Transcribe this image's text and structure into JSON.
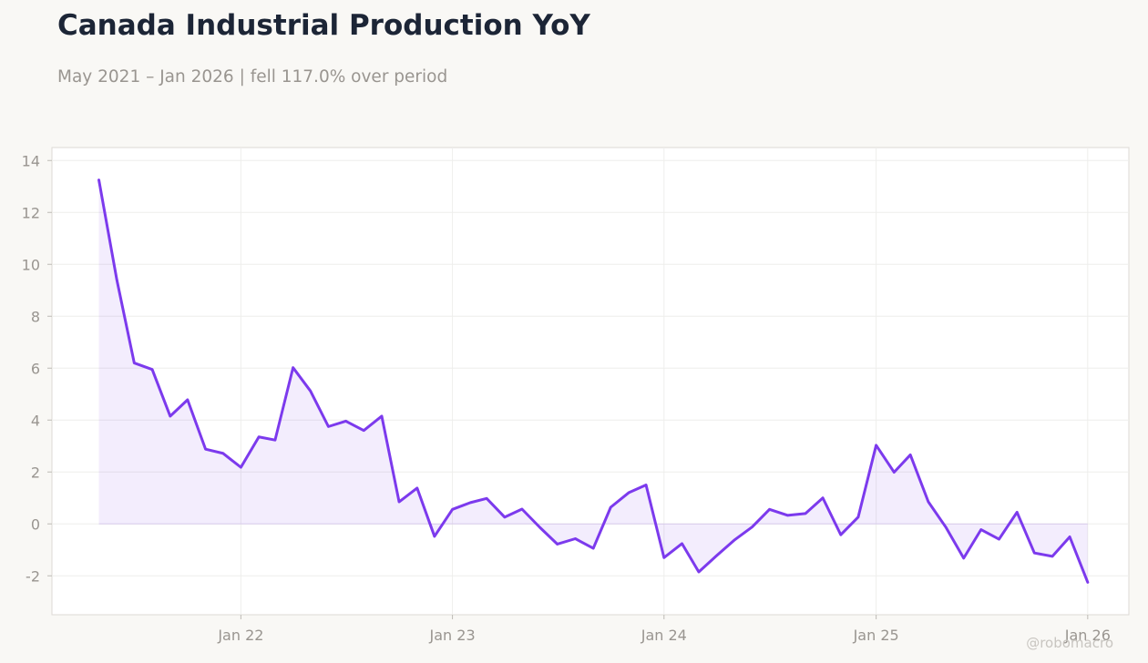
{
  "header": {
    "title": "Canada Industrial Production YoY",
    "subtitle": "May 2021 – Jan 2026 | fell 117.0% over period"
  },
  "watermark": "@robomacro",
  "colors": {
    "background": "#f9f8f5",
    "plot_background": "#ffffff",
    "line": "#7c3aed",
    "fill": "#7c3aed",
    "title": "#1c2536",
    "muted_text": "#999590"
  },
  "chart_data": {
    "type": "area",
    "title": "Canada Industrial Production YoY",
    "subtitle": "May 2021 – Jan 2026 | fell 117.0% over period",
    "xlabel": "",
    "ylabel": "",
    "ylim": [
      -3.5,
      14.5
    ],
    "xlim": [
      "2021-02-09",
      "2026-03-13"
    ],
    "grid": true,
    "x_ticks": [
      {
        "date": "2022-01-01",
        "label": "Jan 22"
      },
      {
        "date": "2023-01-01",
        "label": "Jan 23"
      },
      {
        "date": "2024-01-01",
        "label": "Jan 24"
      },
      {
        "date": "2025-01-01",
        "label": "Jan 25"
      },
      {
        "date": "2026-01-01",
        "label": "Jan 26"
      }
    ],
    "y_ticks": [
      -2,
      0,
      2,
      4,
      6,
      8,
      10,
      12,
      14
    ],
    "y_tick_labels": [
      "-2",
      "0",
      "2",
      "4",
      "6",
      "8",
      "10",
      "12",
      "14"
    ],
    "series": [
      {
        "x": [
          "2021-05-01",
          "2021-06-01",
          "2021-07-01",
          "2021-08-01",
          "2021-09-01",
          "2021-10-01",
          "2021-11-01",
          "2021-12-01",
          "2022-01-01",
          "2022-02-01",
          "2022-03-01",
          "2022-04-01",
          "2022-05-01",
          "2022-06-01",
          "2022-07-01",
          "2022-08-01",
          "2022-09-01",
          "2022-10-01",
          "2022-11-01",
          "2022-12-01",
          "2023-01-01",
          "2023-02-01",
          "2023-03-01",
          "2023-04-01",
          "2023-05-01",
          "2023-06-01",
          "2023-07-01",
          "2023-08-01",
          "2023-09-01",
          "2023-10-01",
          "2023-11-01",
          "2023-12-01",
          "2024-01-01",
          "2024-02-01",
          "2024-03-01",
          "2024-04-01",
          "2024-05-01",
          "2024-06-01",
          "2024-07-01",
          "2024-08-01",
          "2024-09-01",
          "2024-10-01",
          "2024-11-01",
          "2024-12-01",
          "2025-01-01",
          "2025-02-01",
          "2025-03-01",
          "2025-04-01",
          "2025-05-01",
          "2025-06-01",
          "2025-07-01",
          "2025-08-01",
          "2025-09-01",
          "2025-10-01",
          "2025-11-01",
          "2025-12-01",
          "2026-01-01"
        ],
        "values": [
          13.25,
          9.4,
          6.2,
          5.95,
          4.15,
          4.78,
          2.88,
          2.72,
          2.18,
          3.35,
          3.23,
          6.02,
          5.12,
          3.75,
          3.96,
          3.6,
          4.15,
          0.85,
          1.38,
          -0.48,
          0.56,
          0.82,
          0.98,
          0.26,
          0.57,
          -0.14,
          -0.78,
          -0.57,
          -0.94,
          0.64,
          1.2,
          1.5,
          -1.3,
          -0.76,
          -1.85,
          -1.22,
          -0.63,
          -0.12,
          0.56,
          0.33,
          0.4,
          1.0,
          -0.42,
          0.26,
          3.03,
          1.99,
          2.66,
          0.85,
          -0.12,
          -1.32,
          -0.22,
          -0.59,
          0.45,
          -1.12,
          -1.25,
          -0.5,
          -2.25
        ]
      }
    ]
  }
}
